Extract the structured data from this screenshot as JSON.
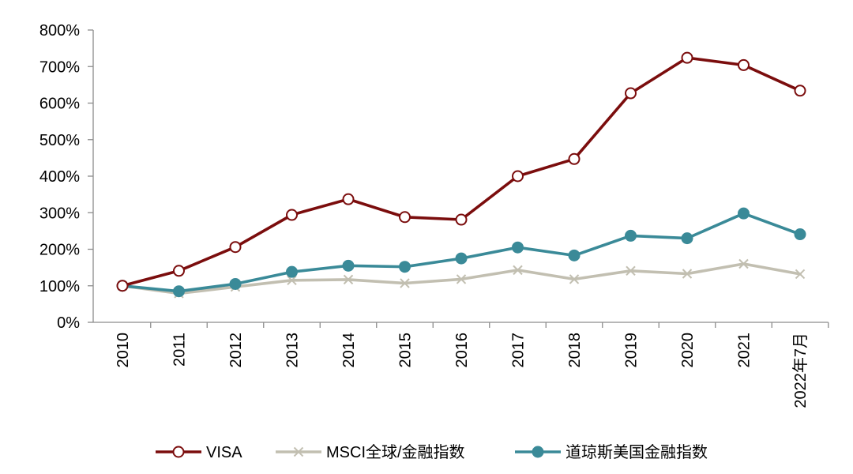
{
  "chart_data": {
    "type": "line",
    "categories": [
      "2010",
      "2011",
      "2012",
      "2013",
      "2014",
      "2015",
      "2016",
      "2017",
      "2018",
      "2019",
      "2020",
      "2021",
      "2022年7月"
    ],
    "y_ticks": [
      "0%",
      "100%",
      "200%",
      "300%",
      "400%",
      "500%",
      "600%",
      "700%",
      "800%"
    ],
    "ylim": [
      0,
      800
    ],
    "y_unit": "%",
    "grid": false,
    "legend_position": "bottom",
    "series": [
      {
        "name": "VISA",
        "color": "#7b0d0d",
        "marker": "open-circle",
        "values": [
          100,
          141,
          206,
          294,
          337,
          288,
          281,
          400,
          447,
          627,
          724,
          704,
          634
        ]
      },
      {
        "name": "MSCI全球/金融指数",
        "color": "#c2bfb1",
        "marker": "x",
        "values": [
          100,
          79,
          97,
          115,
          117,
          107,
          118,
          143,
          118,
          141,
          133,
          160,
          132
        ]
      },
      {
        "name": "道琼斯美国金融指数",
        "color": "#3a8a98",
        "marker": "filled-circle",
        "values": [
          100,
          85,
          105,
          138,
          155,
          152,
          175,
          205,
          183,
          237,
          230,
          298,
          241
        ]
      }
    ]
  }
}
